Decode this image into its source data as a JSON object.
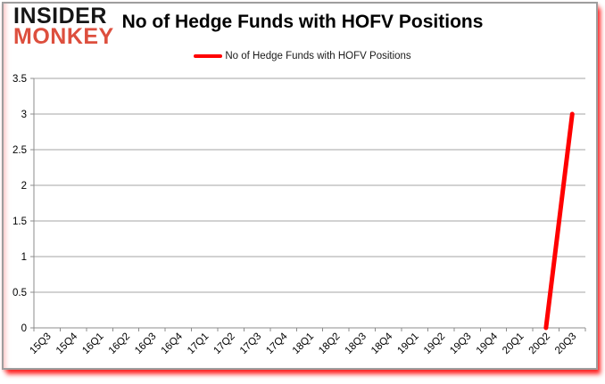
{
  "brand": {
    "line1": "INSIDER",
    "line2": "MONKEY",
    "line1_color": "#161616",
    "line2_color": "#dd4f3e"
  },
  "header": {
    "title": "No of Hedge Funds with HOFV Positions"
  },
  "legend": {
    "label": "No of Hedge Funds with HOFV Positions",
    "swatch_color": "#ff0000"
  },
  "colors": {
    "series_line": "#ff0000",
    "grid": "#a4a4a4",
    "axis": "#8c8c8c",
    "tick_label": "#000000",
    "frame_border": "#9e9e9e",
    "frame_glow": "#ff1a1a"
  },
  "chart_data": {
    "type": "line",
    "title": "No of Hedge Funds with HOFV Positions",
    "xlabel": "",
    "ylabel": "",
    "categories": [
      "15Q3",
      "15Q4",
      "16Q1",
      "16Q2",
      "16Q3",
      "16Q4",
      "17Q1",
      "17Q2",
      "17Q3",
      "17Q4",
      "18Q1",
      "18Q2",
      "18Q3",
      "18Q4",
      "19Q1",
      "19Q2",
      "19Q3",
      "19Q4",
      "20Q1",
      "20Q2",
      "20Q3"
    ],
    "series": [
      {
        "name": "No of Hedge Funds with HOFV Positions",
        "color": "#ff0000",
        "values": [
          null,
          null,
          null,
          null,
          null,
          null,
          null,
          null,
          null,
          null,
          null,
          null,
          null,
          null,
          null,
          null,
          null,
          null,
          null,
          0,
          3
        ]
      }
    ],
    "ylim": [
      0,
      3.5
    ],
    "ytick_step": 0.5,
    "grid": true,
    "legend_position": "top"
  }
}
